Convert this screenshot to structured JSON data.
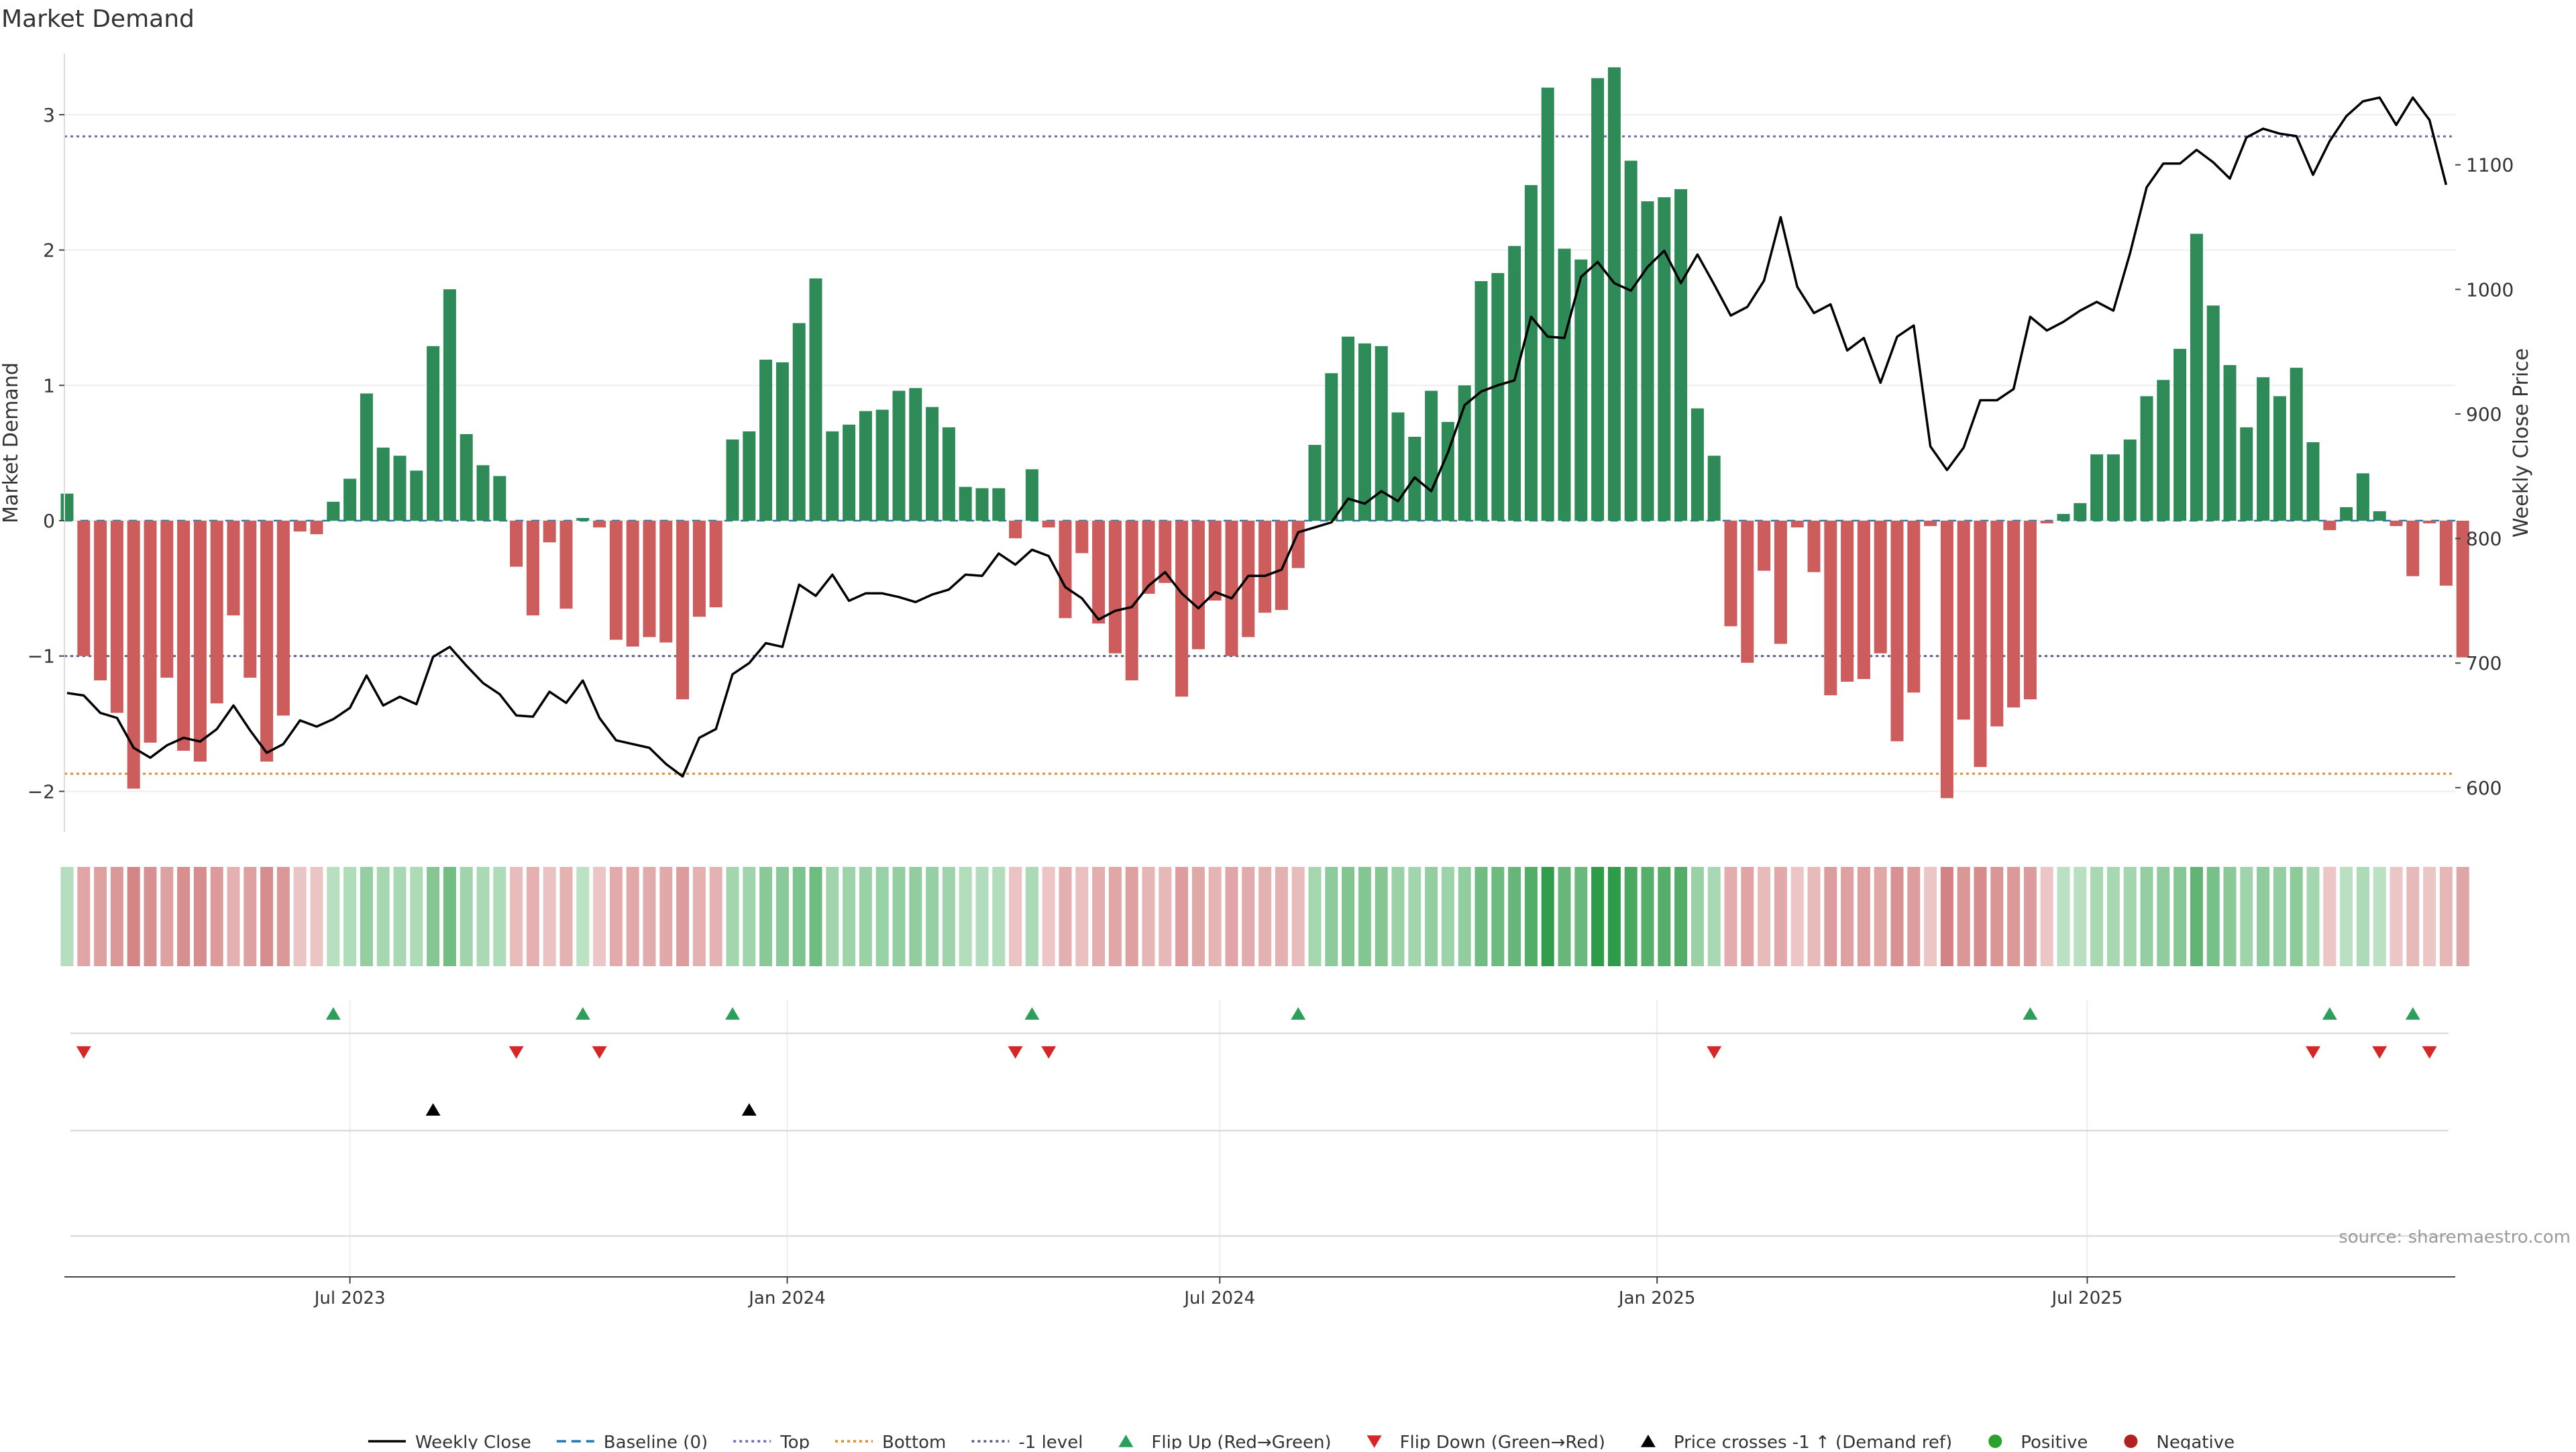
{
  "chart_data": {
    "type": "bar",
    "title": "Market Demand",
    "ylabel": "Market Demand",
    "y2label": "Weekly Close Price",
    "ylim": [
      -2.35,
      3.55
    ],
    "y2lim": [
      559,
      1200
    ],
    "yticks": [
      -2,
      -1,
      0,
      1,
      2,
      3
    ],
    "y2ticks": [
      600,
      700,
      800,
      900,
      1000,
      1100
    ],
    "x_start": "2023-03-04",
    "x_end": "2025-11-15",
    "xticks": [
      {
        "date": "2023-07-01",
        "label": "Jul 2023"
      },
      {
        "date": "2024-01-01",
        "label": "Jan 2024"
      },
      {
        "date": "2024-07-01",
        "label": "Jul 2024"
      },
      {
        "date": "2025-01-01",
        "label": "Jan 2025"
      },
      {
        "date": "2025-07-01",
        "label": "Jul 2025"
      }
    ],
    "reference_lines": [
      {
        "name": "Top",
        "value": 2.84,
        "color": "#6b6bb5",
        "style": "dotted"
      },
      {
        "name": "-1 level",
        "value": -1.0,
        "color": "#5a5a8a",
        "style": "dotted"
      },
      {
        "name": "Bottom",
        "value": -1.87,
        "color": "#e08a2a",
        "style": "dotted"
      },
      {
        "name": "Baseline (0)",
        "value": 0,
        "color": "#1f77b4",
        "style": "dashed"
      }
    ],
    "series": [
      {
        "name": "Market Demand",
        "kind": "bar",
        "positive_color": "#2e8b57",
        "negative_color": "#cd5c5c",
        "values": [
          0.2,
          -1.0,
          -1.18,
          -1.42,
          -1.98,
          -1.64,
          -1.16,
          -1.7,
          -1.78,
          -1.35,
          -0.7,
          -1.16,
          -1.78,
          -1.44,
          -0.08,
          -0.1,
          0.14,
          0.31,
          0.94,
          0.54,
          0.48,
          0.37,
          1.29,
          1.71,
          0.64,
          0.41,
          0.33,
          -0.34,
          -0.7,
          -0.16,
          -0.65,
          0.02,
          -0.05,
          -0.88,
          -0.93,
          -0.86,
          -0.9,
          -1.32,
          -0.71,
          -0.64,
          0.6,
          0.66,
          1.19,
          1.17,
          1.46,
          1.79,
          0.66,
          0.71,
          0.81,
          0.82,
          0.96,
          0.98,
          0.84,
          0.69,
          0.25,
          0.24,
          0.24,
          -0.13,
          0.38,
          -0.05,
          -0.72,
          -0.24,
          -0.76,
          -0.98,
          -1.18,
          -0.54,
          -0.46,
          -1.3,
          -0.95,
          -0.59,
          -1.0,
          -0.86,
          -0.68,
          -0.66,
          -0.35,
          0.56,
          1.09,
          1.36,
          1.31,
          1.29,
          0.8,
          0.62,
          0.96,
          0.73,
          1.0,
          1.77,
          1.83,
          2.03,
          2.48,
          3.2,
          2.01,
          1.93,
          3.27,
          3.35,
          2.66,
          2.36,
          2.39,
          2.45,
          0.83,
          0.48,
          -0.78,
          -1.05,
          -0.37,
          -0.91,
          -0.05,
          -0.38,
          -1.29,
          -1.19,
          -1.17,
          -0.98,
          -1.63,
          -1.27,
          -0.04,
          -2.05,
          -1.47,
          -1.82,
          -1.52,
          -1.38,
          -1.32,
          -0.02,
          0.05,
          0.13,
          0.49,
          0.49,
          0.6,
          0.92,
          1.04,
          1.27,
          2.12,
          1.59,
          1.15,
          0.69,
          1.06,
          0.92,
          1.13,
          0.58,
          -0.07,
          0.1,
          0.35,
          0.07,
          -0.04,
          -0.41,
          -0.02,
          -0.48,
          -1.01
        ]
      },
      {
        "name": "Weekly Close",
        "kind": "line",
        "axis": "right",
        "color": "#000000",
        "values": [
          676,
          674,
          660,
          656,
          632,
          624,
          634,
          640,
          637,
          647,
          666,
          646,
          628,
          635,
          654,
          649,
          655,
          664,
          690,
          666,
          673,
          667,
          705,
          713,
          698,
          684,
          675,
          658,
          657,
          677,
          668,
          686,
          656,
          638,
          635,
          632,
          619,
          609,
          640,
          647,
          691,
          700,
          716,
          713,
          763,
          754,
          771,
          750,
          756,
          756,
          753,
          749,
          755,
          759,
          771,
          770,
          788,
          779,
          791,
          786,
          761,
          752,
          735,
          742,
          745,
          762,
          773,
          756,
          744,
          757,
          752,
          770,
          770,
          775,
          805,
          809,
          813,
          832,
          828,
          838,
          830,
          849,
          838,
          869,
          907,
          918,
          923,
          927,
          978,
          962,
          961,
          1010,
          1022,
          1005,
          999,
          1018,
          1031,
          1005,
          1028,
          1004,
          979,
          986,
          1007,
          1058,
          1002,
          981,
          988,
          951,
          961,
          925,
          962,
          971,
          874,
          855,
          873,
          911,
          911,
          920,
          978,
          967,
          974,
          983,
          990,
          983,
          1029,
          1082,
          1101,
          1101,
          1112,
          1102,
          1089,
          1122,
          1129,
          1125,
          1123,
          1092,
          1119,
          1139,
          1151,
          1154,
          1132,
          1154,
          1136,
          1084
        ]
      }
    ],
    "flip_up_weeks": [
      16,
      31,
      40,
      58,
      74,
      118,
      136,
      141
    ],
    "flip_down_weeks": [
      1,
      27,
      32,
      57,
      59,
      99,
      135,
      139,
      142
    ],
    "price_cross_weeks": [
      22,
      41
    ],
    "legend": [
      {
        "label": "Weekly Close",
        "kind": "line",
        "color": "#000000"
      },
      {
        "label": "Baseline (0)",
        "kind": "dashed",
        "color": "#1f77b4"
      },
      {
        "label": "Top",
        "kind": "dotted",
        "color": "#6b6bb5"
      },
      {
        "label": "Bottom",
        "kind": "dotted",
        "color": "#e08a2a"
      },
      {
        "label": "-1 level",
        "kind": "dotted",
        "color": "#5a5a8a"
      },
      {
        "label": "Flip Up (Red→Green)",
        "kind": "triangle-up",
        "color": "#2ca05a"
      },
      {
        "label": "Flip Down (Green→Red)",
        "kind": "triangle-down",
        "color": "#d62728"
      },
      {
        "label": "Price crosses -1 ↑ (Demand ref)",
        "kind": "triangle-up",
        "color": "#000000"
      },
      {
        "label": "Positive",
        "kind": "dot",
        "color": "#2ca02c"
      },
      {
        "label": "Negative",
        "kind": "dot",
        "color": "#b22222"
      }
    ],
    "legend_position": "bottom-center",
    "source": "source: sharemaestro.com"
  }
}
